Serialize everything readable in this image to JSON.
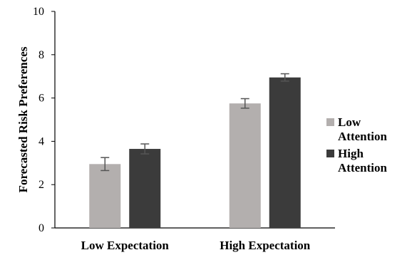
{
  "chart_data": {
    "type": "bar",
    "title": "",
    "xlabel": "",
    "ylabel": "Forecasted Risk Preferences",
    "categories": [
      "Low Expectation",
      "High Expectation"
    ],
    "series": [
      {
        "name": "Low Attention",
        "legend_lines": [
          "Low",
          "Attention"
        ],
        "values": [
          2.95,
          5.75
        ],
        "errors": [
          0.3,
          0.22
        ],
        "color": "#b3afae"
      },
      {
        "name": "High Attention",
        "legend_lines": [
          "High",
          "Attention"
        ],
        "values": [
          3.65,
          6.95
        ],
        "errors": [
          0.23,
          0.17
        ],
        "color": "#3b3b3b"
      }
    ],
    "ylim": [
      0,
      10
    ],
    "yticks": [
      "0",
      "2",
      "4",
      "6",
      "8",
      "10"
    ],
    "grid": false,
    "legend_position": "right",
    "error_bar_color": "#555555"
  }
}
